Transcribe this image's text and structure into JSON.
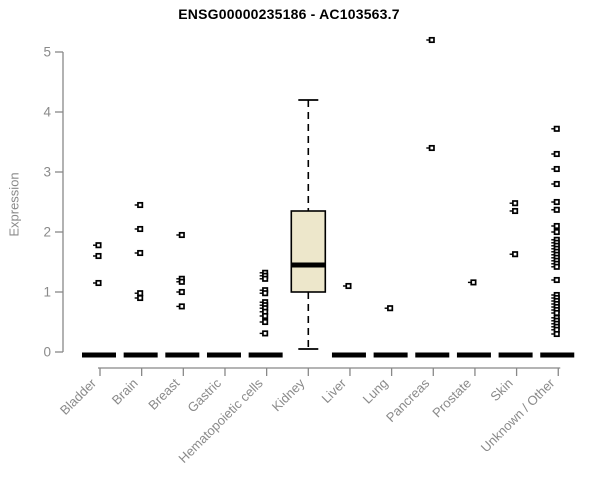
{
  "colors": {
    "axis": "#888888",
    "tick_text": "#8a8a8a",
    "box_fill": "#EDE7CB",
    "box_stroke": "#000000",
    "title_text": "#000000"
  },
  "chart_data": {
    "type": "boxplot",
    "title": "ENSG00000235186 - AC103563.7",
    "ylabel": "Expression",
    "xlabel": "",
    "ylim": [
      0,
      5
    ],
    "y_ticks": [
      0,
      1,
      2,
      3,
      4,
      5
    ],
    "grid": false,
    "legend": "none",
    "categories": [
      "Bladder",
      "Brain",
      "Breast",
      "Gastric",
      "Hematopoietic cells",
      "Kidney",
      "Liver",
      "Lung",
      "Pancreas",
      "Prostate",
      "Skin",
      "Unknown / Other"
    ],
    "series": [
      {
        "category": "Bladder",
        "q1": 0,
        "median": 0,
        "q3": 0,
        "whisker_low": 0,
        "whisker_high": 0,
        "outliers": [
          1.78,
          1.6,
          1.15
        ]
      },
      {
        "category": "Brain",
        "q1": 0,
        "median": 0,
        "q3": 0,
        "whisker_low": 0,
        "whisker_high": 0,
        "outliers": [
          2.45,
          2.05,
          1.65,
          0.98,
          0.9
        ]
      },
      {
        "category": "Breast",
        "q1": 0,
        "median": 0,
        "q3": 0,
        "whisker_low": 0,
        "whisker_high": 0,
        "outliers": [
          1.95,
          1.22,
          1.17,
          1.0,
          0.76
        ]
      },
      {
        "category": "Gastric",
        "q1": 0,
        "median": 0,
        "q3": 0,
        "whisker_low": 0,
        "whisker_high": 0,
        "outliers": []
      },
      {
        "category": "Hematopoietic cells",
        "q1": 0,
        "median": 0,
        "q3": 0,
        "whisker_low": 0,
        "whisker_high": 0,
        "outliers": [
          1.32,
          1.27,
          1.22,
          1.03,
          0.98,
          0.83,
          0.78,
          0.73,
          0.67,
          0.6,
          0.5,
          0.31
        ]
      },
      {
        "category": "Kidney",
        "q1": 1.0,
        "median": 1.45,
        "q3": 2.35,
        "whisker_low": 0.05,
        "whisker_high": 4.2,
        "outliers": []
      },
      {
        "category": "Liver",
        "q1": 0,
        "median": 0,
        "q3": 0,
        "whisker_low": 0,
        "whisker_high": 0,
        "outliers": [
          1.1
        ]
      },
      {
        "category": "Lung",
        "q1": 0,
        "median": 0,
        "q3": 0,
        "whisker_low": 0,
        "whisker_high": 0,
        "outliers": [
          0.73
        ]
      },
      {
        "category": "Pancreas",
        "q1": 0,
        "median": 0,
        "q3": 0,
        "whisker_low": 0,
        "whisker_high": 0,
        "outliers": [
          5.2,
          3.4
        ]
      },
      {
        "category": "Prostate",
        "q1": 0,
        "median": 0,
        "q3": 0,
        "whisker_low": 0,
        "whisker_high": 0,
        "outliers": [
          1.16
        ]
      },
      {
        "category": "Skin",
        "q1": 0,
        "median": 0,
        "q3": 0,
        "whisker_low": 0,
        "whisker_high": 0,
        "outliers": [
          2.48,
          2.35,
          1.63
        ]
      },
      {
        "category": "Unknown / Other",
        "q1": 0,
        "median": 0,
        "q3": 0,
        "whisker_low": 0,
        "whisker_high": 0,
        "outliers": [
          3.72,
          3.3,
          3.05,
          2.8,
          2.5,
          2.37,
          2.1,
          2.0,
          1.87,
          1.82,
          1.77,
          1.72,
          1.67,
          1.62,
          1.57,
          1.52,
          1.47,
          1.42,
          1.2,
          0.95,
          0.9,
          0.85,
          0.8,
          0.75,
          0.7,
          0.65,
          0.57,
          0.52,
          0.47,
          0.42,
          0.37,
          0.3
        ]
      }
    ]
  }
}
